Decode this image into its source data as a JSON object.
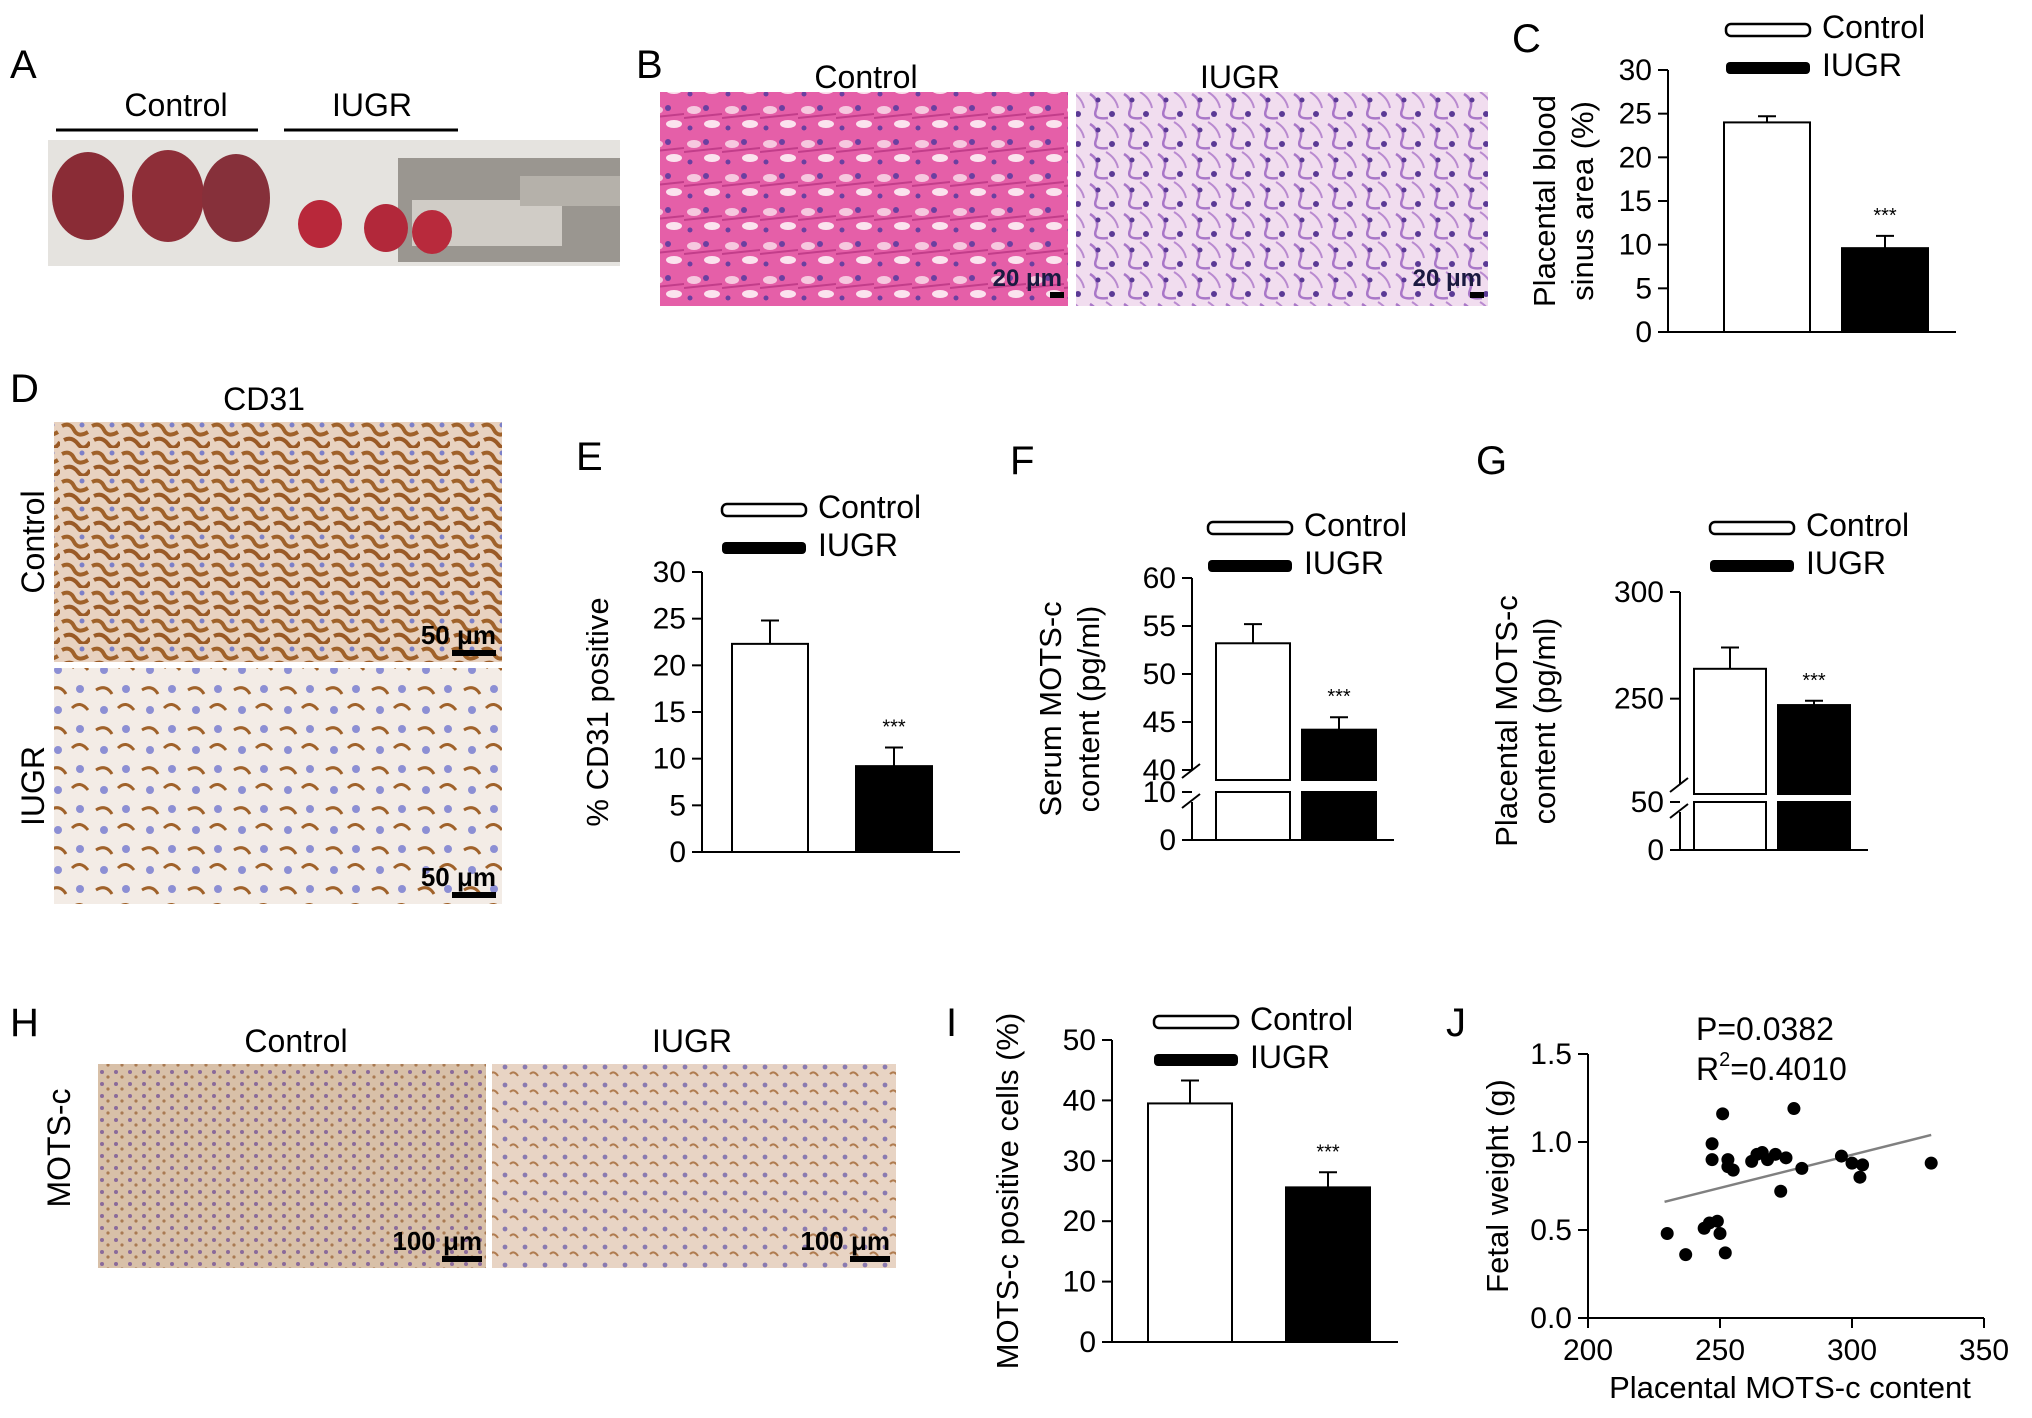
{
  "colors": {
    "control_fill": "#ffffff",
    "iugr_fill": "#000000",
    "axis": "#000000",
    "fit_line": "#808080",
    "he_stain": "#d9509a",
    "ihc_brown": "#a0622a",
    "ihc_blue": "#7c80c8"
  },
  "panels": {
    "A": {
      "letter": "A",
      "label_control": "Control",
      "label_iugr": "IUGR"
    },
    "B": {
      "letter": "B",
      "label_control": "Control",
      "label_iugr": "IUGR",
      "scale_control": "20 μm",
      "scale_iugr": "20 μm"
    },
    "D": {
      "letter": "D",
      "title": "CD31",
      "row_control": "Control",
      "row_iugr": "IUGR",
      "scale_control": "50 μm",
      "scale_iugr": "50 μm"
    },
    "H": {
      "letter": "H",
      "row_label": "MOTS-c",
      "label_control": "Control",
      "label_iugr": "IUGR",
      "scale_control": "100 μm",
      "scale_iugr": "100 μm"
    }
  },
  "legend": {
    "control": "Control",
    "iugr": "IUGR"
  },
  "significance": "***",
  "chart_data": [
    {
      "id": "C",
      "type": "bar",
      "letter": "C",
      "categories": [
        "Control",
        "IUGR"
      ],
      "values": [
        24.0,
        9.6
      ],
      "errors": [
        0.7,
        1.4
      ],
      "ylabel_lines": [
        "Placental blood",
        "sinus area (%)"
      ],
      "ylim": [
        0,
        30
      ],
      "yticks": [
        "0",
        "5",
        "10",
        "15",
        "20",
        "25",
        "30"
      ],
      "legend": "top"
    },
    {
      "id": "E",
      "type": "bar",
      "letter": "E",
      "categories": [
        "Control",
        "IUGR"
      ],
      "values": [
        22.3,
        9.2
      ],
      "errors": [
        2.5,
        2.0
      ],
      "ylabel_lines": [
        "% CD31 positive"
      ],
      "ylim": [
        0,
        30
      ],
      "yticks": [
        "0",
        "5",
        "10",
        "15",
        "20",
        "25",
        "30"
      ],
      "legend": "top"
    },
    {
      "id": "F",
      "type": "bar",
      "letter": "F",
      "categories": [
        "Control",
        "IUGR"
      ],
      "values": [
        53.2,
        44.2
      ],
      "errors": [
        2.0,
        1.3
      ],
      "ylabel_lines": [
        "Serum MOTS-c",
        "content (pg/ml)"
      ],
      "ylim_lower": [
        0,
        10
      ],
      "ylim_upper": [
        40,
        60
      ],
      "yticks_lower": [
        "0",
        "10"
      ],
      "yticks_upper": [
        "40",
        "45",
        "50",
        "55",
        "60"
      ],
      "axis_break": true,
      "legend": "top"
    },
    {
      "id": "G",
      "type": "bar",
      "letter": "G",
      "categories": [
        "Control",
        "IUGR"
      ],
      "values": [
        264,
        247
      ],
      "errors": [
        10,
        2
      ],
      "ylabel_lines": [
        "Placental MOTS-c",
        "content (pg/ml)"
      ],
      "ylim_lower": [
        0,
        50
      ],
      "ylim_upper": [
        210,
        300
      ],
      "yticks_lower": [
        "0",
        "50"
      ],
      "yticks_upper": [
        "250",
        "300"
      ],
      "axis_break": true,
      "legend": "top"
    },
    {
      "id": "I",
      "type": "bar",
      "letter": "I",
      "categories": [
        "Control",
        "IUGR"
      ],
      "values": [
        39.5,
        25.6
      ],
      "errors": [
        3.8,
        2.5
      ],
      "ylabel_lines": [
        "MOTS-c positive cells (%)"
      ],
      "ylim": [
        0,
        50
      ],
      "yticks": [
        "0",
        "10",
        "20",
        "30",
        "40",
        "50"
      ],
      "legend": "top"
    },
    {
      "id": "J",
      "type": "scatter",
      "letter": "J",
      "xlabel": "Placental MOTS-c content",
      "ylabel": "Fetal weight (g)",
      "xlim": [
        200,
        350
      ],
      "ylim": [
        0.0,
        1.5
      ],
      "xticks": [
        "200",
        "250",
        "300",
        "350"
      ],
      "yticks": [
        "0.0",
        "0.5",
        "1.0",
        "1.5"
      ],
      "annotation_p": "P=0.0382",
      "annotation_r2_prefix": "R",
      "annotation_r2_sup": "2",
      "annotation_r2_suffix": "=0.4010",
      "fit": {
        "x": [
          229,
          330
        ],
        "y": [
          0.66,
          1.04
        ]
      },
      "points": [
        [
          230,
          0.48
        ],
        [
          237,
          0.36
        ],
        [
          244,
          0.51
        ],
        [
          246,
          0.54
        ],
        [
          247,
          0.9
        ],
        [
          247,
          0.99
        ],
        [
          249,
          0.55
        ],
        [
          250,
          0.48
        ],
        [
          251,
          1.16
        ],
        [
          252,
          0.37
        ],
        [
          253,
          0.9
        ],
        [
          253,
          0.86
        ],
        [
          255,
          0.84
        ],
        [
          262,
          0.89
        ],
        [
          264,
          0.93
        ],
        [
          266,
          0.94
        ],
        [
          268,
          0.9
        ],
        [
          271,
          0.93
        ],
        [
          273,
          0.72
        ],
        [
          275,
          0.91
        ],
        [
          278,
          1.19
        ],
        [
          281,
          0.85
        ],
        [
          296,
          0.92
        ],
        [
          300,
          0.88
        ],
        [
          303,
          0.8
        ],
        [
          304,
          0.87
        ],
        [
          330,
          0.88
        ]
      ]
    }
  ]
}
